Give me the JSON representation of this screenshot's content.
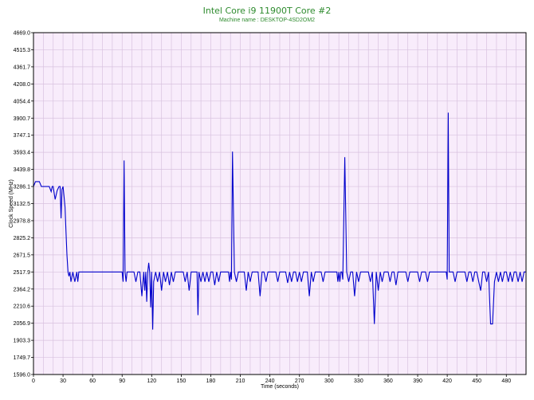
{
  "title": "Intel Core i9 11900T Core #2",
  "subtitle": "Machine name : DESKTOP-4SD2OM2",
  "colors": {
    "title": "#2e8b2e",
    "plot_bg": "#f8ecfb",
    "grid": "#d8c2df",
    "line": "#0000cc"
  },
  "chart_data": {
    "type": "line",
    "title": "Intel Core i9 11900T Core #2",
    "subtitle": "Machine name : DESKTOP-4SD2OM2",
    "xlabel": "Time (seconds)",
    "ylabel": "Clock Speed (MHz)",
    "xlim": [
      0,
      500
    ],
    "ylim": [
      1596.0,
      4669.0
    ],
    "grid": true,
    "legend": "none",
    "x_ticks": [
      "0",
      "30",
      "60",
      "90",
      "120",
      "150",
      "180",
      "210",
      "240",
      "270",
      "300",
      "330",
      "360",
      "390",
      "420",
      "450",
      "480"
    ],
    "y_ticks": [
      "1596.0",
      "1749.7",
      "1903.3",
      "2056.9",
      "2210.6",
      "2364.2",
      "2517.9",
      "2671.5",
      "2825.2",
      "2978.8",
      "3132.5",
      "3286.1",
      "3439.8",
      "3593.4",
      "3747.1",
      "3900.7",
      "4054.4",
      "4208.0",
      "4361.7",
      "4515.3",
      "4669.0"
    ],
    "series": [
      {
        "x": [
          0,
          2,
          4,
          6,
          8,
          10,
          12,
          14,
          16,
          18,
          19,
          20,
          22,
          24,
          26,
          27,
          28,
          29,
          30,
          31,
          32,
          33,
          34,
          35,
          36,
          37,
          38,
          40,
          42,
          44,
          45,
          46,
          48,
          50,
          52,
          54,
          56,
          58,
          60,
          62,
          64,
          66,
          68,
          70,
          72,
          74,
          76,
          78,
          80,
          82,
          84,
          86,
          88,
          90,
          91,
          92,
          93,
          94,
          95,
          96,
          98,
          100,
          102,
          104,
          106,
          108,
          110,
          112,
          113,
          114,
          115,
          116,
          117,
          118,
          119,
          120,
          121,
          122,
          124,
          126,
          128,
          130,
          132,
          134,
          136,
          138,
          140,
          142,
          144,
          146,
          148,
          150,
          152,
          154,
          156,
          158,
          160,
          162,
          164,
          166,
          167,
          168,
          170,
          172,
          174,
          176,
          178,
          180,
          182,
          184,
          186,
          188,
          190,
          192,
          194,
          196,
          198,
          199,
          200,
          201,
          202,
          204,
          206,
          208,
          210,
          212,
          214,
          216,
          218,
          220,
          222,
          224,
          226,
          228,
          230,
          232,
          234,
          236,
          238,
          240,
          242,
          244,
          246,
          248,
          250,
          252,
          254,
          256,
          258,
          260,
          262,
          264,
          266,
          268,
          270,
          272,
          274,
          276,
          278,
          280,
          282,
          284,
          286,
          288,
          290,
          292,
          294,
          296,
          298,
          300,
          302,
          304,
          306,
          307,
          308,
          309,
          310,
          311,
          312,
          313,
          314,
          316,
          318,
          320,
          322,
          324,
          326,
          328,
          330,
          332,
          334,
          336,
          338,
          340,
          342,
          344,
          346,
          348,
          350,
          352,
          354,
          356,
          358,
          360,
          362,
          364,
          366,
          368,
          370,
          372,
          374,
          376,
          378,
          380,
          382,
          384,
          386,
          388,
          390,
          392,
          394,
          396,
          398,
          400,
          402,
          404,
          406,
          408,
          410,
          412,
          414,
          416,
          418,
          419,
          420,
          421,
          422,
          424,
          426,
          428,
          430,
          432,
          434,
          436,
          438,
          440,
          442,
          444,
          446,
          448,
          450,
          452,
          454,
          456,
          458,
          460,
          462,
          464,
          466,
          468,
          470,
          472,
          474,
          476,
          478,
          480,
          482,
          484,
          486,
          488,
          490,
          492,
          494,
          496,
          498,
          500
        ],
        "values": [
          3286.1,
          3330,
          3330,
          3330,
          3286.1,
          3286,
          3286,
          3286,
          3286,
          3240,
          3286,
          3286,
          3170,
          3250,
          3286,
          3286,
          3000,
          3260,
          3286,
          3200,
          3100,
          2880,
          2671.5,
          2520,
          2480,
          2517.9,
          2430,
          2517.9,
          2430,
          2517.9,
          2430,
          2517.9,
          2517.9,
          2517.9,
          2517.9,
          2517.9,
          2517.9,
          2517.9,
          2517.9,
          2517.9,
          2517.9,
          2517.9,
          2517.9,
          2517.9,
          2517.9,
          2517.9,
          2517.9,
          2517.9,
          2517.9,
          2517.9,
          2517.9,
          2517.9,
          2517.9,
          2517.9,
          2430,
          3520,
          2517.9,
          2430,
          2517.9,
          2517.9,
          2517.9,
          2517.9,
          2517.9,
          2430,
          2517.9,
          2517.9,
          2300,
          2517.9,
          2350,
          2517.9,
          2250,
          2517.9,
          2600,
          2517.9,
          2200,
          2517.9,
          2000,
          2430,
          2517.9,
          2430,
          2517.9,
          2350,
          2517.9,
          2430,
          2517.9,
          2400,
          2517.9,
          2430,
          2517.9,
          2517.9,
          2517.9,
          2517.9,
          2517.9,
          2430,
          2517.9,
          2350,
          2517.9,
          2517.9,
          2517.9,
          2517.9,
          2130,
          2517.9,
          2430,
          2517.9,
          2430,
          2517.9,
          2430,
          2517.9,
          2517.9,
          2400,
          2517.9,
          2430,
          2517.9,
          2517.9,
          2517.9,
          2517.9,
          2517.9,
          2430,
          2517.9,
          2450,
          3600,
          2517.9,
          2430,
          2517.9,
          2517.9,
          2517.9,
          2517.9,
          2350,
          2517.9,
          2430,
          2517.9,
          2517.9,
          2517.9,
          2517.9,
          2300,
          2517.9,
          2517.9,
          2430,
          2517.9,
          2517.9,
          2517.9,
          2517.9,
          2517.9,
          2430,
          2517.9,
          2517.9,
          2517.9,
          2517.9,
          2420,
          2517.9,
          2430,
          2517.9,
          2517.9,
          2430,
          2517.9,
          2430,
          2517.9,
          2517.9,
          2517.9,
          2300,
          2517.9,
          2430,
          2517.9,
          2517.9,
          2517.9,
          2517.9,
          2430,
          2517.9,
          2517.9,
          2517.9,
          2517.9,
          2517.9,
          2517.9,
          2517.9,
          2517.9,
          2430,
          2517.9,
          2430,
          2517.9,
          2517.9,
          2450,
          3550,
          2517.9,
          2430,
          2517.9,
          2517.9,
          2300,
          2517.9,
          2430,
          2517.9,
          2517.9,
          2517.9,
          2517.9,
          2517.9,
          2430,
          2517.9,
          2050,
          2517.9,
          2350,
          2517.9,
          2430,
          2517.9,
          2517.9,
          2517.9,
          2430,
          2517.9,
          2517.9,
          2400,
          2517.9,
          2517.9,
          2517.9,
          2517.9,
          2517.9,
          2430,
          2517.9,
          2517.9,
          2517.9,
          2517.9,
          2517.9,
          2430,
          2517.9,
          2517.9,
          2517.9,
          2430,
          2517.9,
          2517.9,
          2517.9,
          2517.9,
          2517.9,
          2517.9,
          2517.9,
          2517.9,
          2517.9,
          2517.9,
          2450,
          3950,
          2517.9,
          2517.9,
          2517.9,
          2430,
          2517.9,
          2517.9,
          2517.9,
          2517.9,
          2517.9,
          2430,
          2517.9,
          2517.9,
          2430,
          2517.9,
          2517.9,
          2430,
          2350,
          2517.9,
          2517.9,
          2430,
          2517.9,
          2050,
          2050,
          2430,
          2517.9,
          2430,
          2517.9,
          2430,
          2517.9,
          2517.9,
          2430,
          2517.9,
          2430,
          2517.9,
          2517.9,
          2430,
          2517.9,
          2430,
          2517.9,
          2517.9
        ]
      }
    ]
  }
}
